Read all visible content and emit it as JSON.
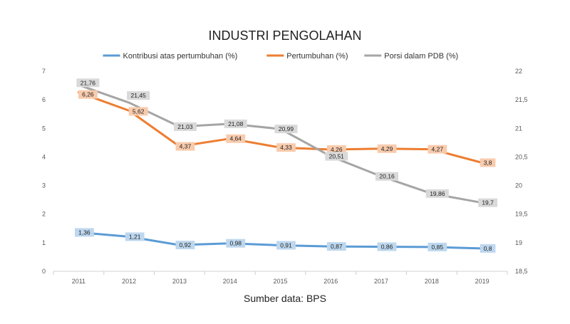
{
  "chart_data": {
    "type": "line",
    "title": "INDUSTRI PENGOLAHAN",
    "footer": "Sumber data: BPS",
    "legend_position": "top",
    "grid": false,
    "categories": [
      "2011",
      "2012",
      "2013",
      "2014",
      "2015",
      "2016",
      "2017",
      "2018",
      "2019"
    ],
    "y_left": {
      "range": [
        0,
        7
      ],
      "ticks": [
        "0",
        "1",
        "2",
        "3",
        "4",
        "5",
        "6",
        "7"
      ]
    },
    "y_right": {
      "range": [
        18.5,
        22
      ],
      "ticks": [
        "18,5",
        "19",
        "19,5",
        "20",
        "20,5",
        "21",
        "21,5",
        "22"
      ]
    },
    "series": [
      {
        "name": "Kontribusi atas pertumbuhan (%)",
        "axis": "left",
        "color": "#5b9bd5",
        "label_bg": "#bdd7ee",
        "values": [
          1.36,
          1.21,
          0.92,
          0.98,
          0.91,
          0.87,
          0.86,
          0.85,
          0.8
        ],
        "labels": [
          "1,36",
          "1,21",
          "0,92",
          "0,98",
          "0,91",
          "0,87",
          "0,86",
          "0,85",
          "0,8"
        ]
      },
      {
        "name": "Pertumbuhan (%)",
        "axis": "left",
        "color": "#ed7d31",
        "label_bg": "#f8cbad",
        "values": [
          6.26,
          5.62,
          4.37,
          4.64,
          4.33,
          4.26,
          4.29,
          4.27,
          3.8
        ],
        "labels": [
          "6,26",
          "5,62",
          "4,37",
          "4,64",
          "4,33",
          "4,26",
          "4,29",
          "4,27",
          "3,8"
        ]
      },
      {
        "name": "Porsi dalam PDB (%)",
        "axis": "right",
        "color": "#a5a5a5",
        "label_bg": "#d9d9d9",
        "values": [
          21.76,
          21.45,
          21.03,
          21.08,
          20.99,
          20.51,
          20.16,
          19.86,
          19.7
        ],
        "labels": [
          "21,76",
          "21,45",
          "21,03",
          "21,08",
          "20,99",
          "20,51",
          "20,16",
          "19,86",
          "19,7"
        ]
      }
    ]
  }
}
